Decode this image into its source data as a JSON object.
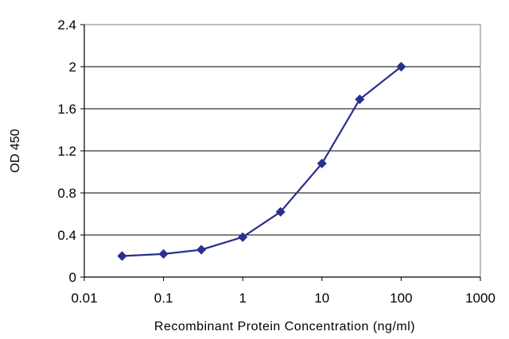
{
  "chart_data": {
    "type": "line",
    "title": "",
    "xlabel": "Recombinant Protein Concentration (ng/ml)",
    "ylabel": "OD 450",
    "x_scale": "log",
    "xlim": [
      0.01,
      1000
    ],
    "ylim": [
      0,
      2.4
    ],
    "x_ticks": [
      0.01,
      0.1,
      1,
      10,
      100,
      1000
    ],
    "x_tick_labels": [
      "0.01",
      "0.1",
      "1",
      "10",
      "100",
      "1000"
    ],
    "y_ticks": [
      0,
      0.4,
      0.8,
      1.2,
      1.6,
      2,
      2.4
    ],
    "y_tick_labels": [
      "0",
      "0.4",
      "0.8",
      "1.2",
      "1.6",
      "2",
      "2.4"
    ],
    "grid": "horizontal",
    "legend": "none",
    "series": [
      {
        "x": [
          0.03,
          0.1,
          0.3,
          1,
          3,
          10,
          30,
          100
        ],
        "y": [
          0.2,
          0.22,
          0.26,
          0.38,
          0.62,
          1.08,
          1.69,
          2.0
        ],
        "color": "#2a2f8f",
        "marker": "diamond"
      }
    ],
    "colors": {
      "line": "#2a2f8f",
      "grid": "#000000",
      "frame": "#7f7f7f"
    }
  }
}
